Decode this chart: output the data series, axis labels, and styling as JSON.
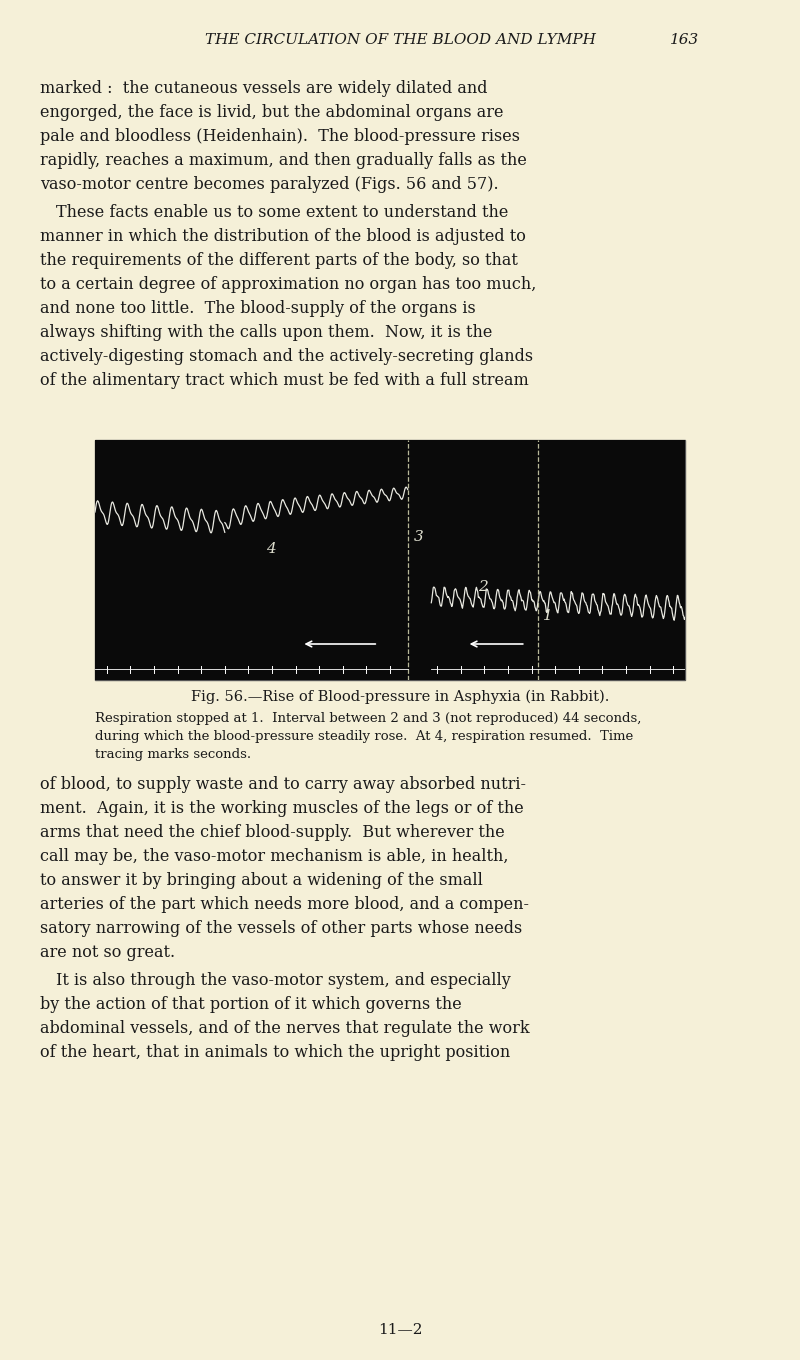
{
  "page_bg": "#f5f0d8",
  "header_text": "THE CIRCULATION OF THE BLOOD AND LYMPH",
  "header_page": "163",
  "body_text_1": "marked :  the cutaneous vessels are widely dilated and\nengorged, the face is livid, but the abdominal organs are\npale and bloodless (Heidenhain).  The blood-pressure rises\nrapidly, reaches a maximum, and then gradually falls as the\nvaso-motor centre becomes paralyzed (Figs. 56 and 57).",
  "body_text_2": " These facts enable us to some extent to understand the\nmanner in which the distribution of the blood is adjusted to\nthe requirements of the different parts of the body, so that\nto a certain degree of approximation no organ has too much,\nand none too little.  The blood-supply of the organs is\nalways shifting with the calls upon them.  Now, it is the\nactively-digesting stomach and the actively-secreting glands\nof the alimentary tract which must be fed with a full stream",
  "fig_caption_bold": "Fig. 56.—Rise of Blood-pressure in Asphyxia (in Rabbit).",
  "fig_caption_normal": "Respiration stopped at 1.  Interval between 2 and 3 (not reproduced) 44 seconds,\nduring which the blood-pressure steadily rose.  At 4, respiration resumed.  Time\ntracing marks seconds.",
  "body_text_3": "of blood, to supply waste and to carry away absorbed nutri-\nment.  Again, it is the working muscles of the legs or of the\narms that need the chief blood-supply.  But wherever the\ncall may be, the vaso-motor mechanism is able, in health,\nto answer it by bringing about a widening of the small\narteries of the part which needs more blood, and a compen-\nsatory narrowing of the vessels of other parts whose needs\nare not so great.",
  "body_text_4": " It is also through the vaso-motor system, and especially\nby the action of that portion of it which governs the\nabdominal vessels, and of the nerves that regulate the work\nof the heart, that in animals to which the upright position",
  "footer_text": "11—2",
  "text_color": "#1a1a1a",
  "figure_bg": "#0a0a0a",
  "trace_color": "#e8e8e0",
  "dashed_color": "#ccccaa",
  "label_color": "#e0e0d0"
}
